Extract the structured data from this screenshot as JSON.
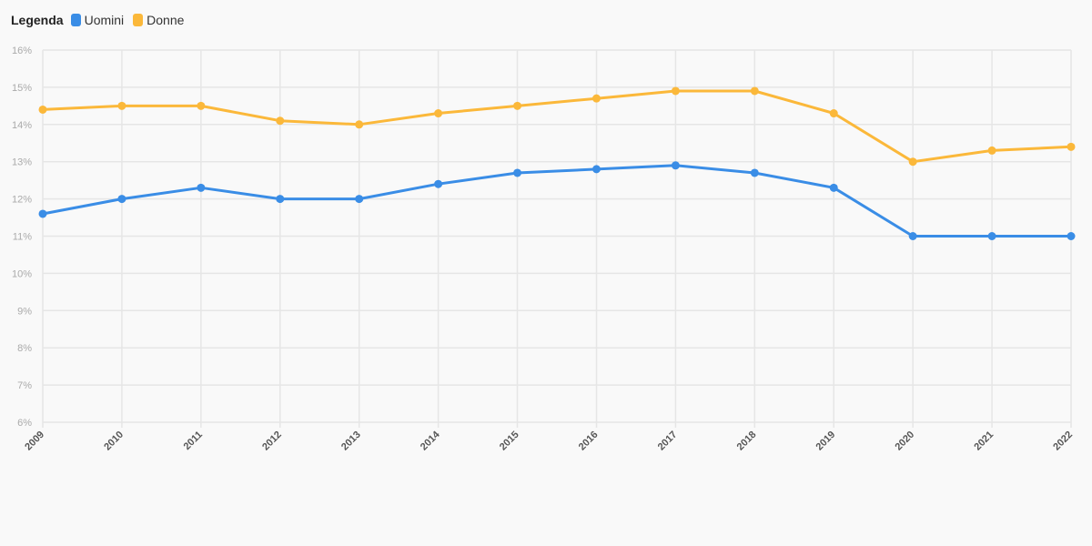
{
  "legend": {
    "title": "Legenda",
    "items": [
      {
        "label": "Uomini",
        "color": "#3a8de6"
      },
      {
        "label": "Donne",
        "color": "#fbb83a"
      }
    ]
  },
  "chart_data": {
    "type": "line",
    "x": [
      "2009",
      "2010",
      "2011",
      "2012",
      "2013",
      "2014",
      "2015",
      "2016",
      "2017",
      "2018",
      "2019",
      "2020",
      "2021",
      "2022"
    ],
    "series": [
      {
        "name": "Uomini",
        "color": "#3a8de6",
        "values": [
          11.6,
          12.0,
          12.3,
          12.0,
          12.0,
          12.4,
          12.7,
          12.8,
          12.9,
          12.7,
          12.3,
          11.0,
          11.0,
          11.0
        ]
      },
      {
        "name": "Donne",
        "color": "#fbb83a",
        "values": [
          14.4,
          14.5,
          14.5,
          14.1,
          14.0,
          14.3,
          14.5,
          14.7,
          14.9,
          14.9,
          14.3,
          13.0,
          13.3,
          13.4
        ]
      }
    ],
    "ylim": [
      6,
      16
    ],
    "yticks": [
      6,
      7,
      8,
      9,
      10,
      11,
      12,
      13,
      14,
      15,
      16
    ],
    "ytick_labels": [
      "6%",
      "7%",
      "8%",
      "9%",
      "10%",
      "11%",
      "12%",
      "13%",
      "14%",
      "15%",
      "16%"
    ],
    "grid": true,
    "legend_position": "top-left"
  }
}
